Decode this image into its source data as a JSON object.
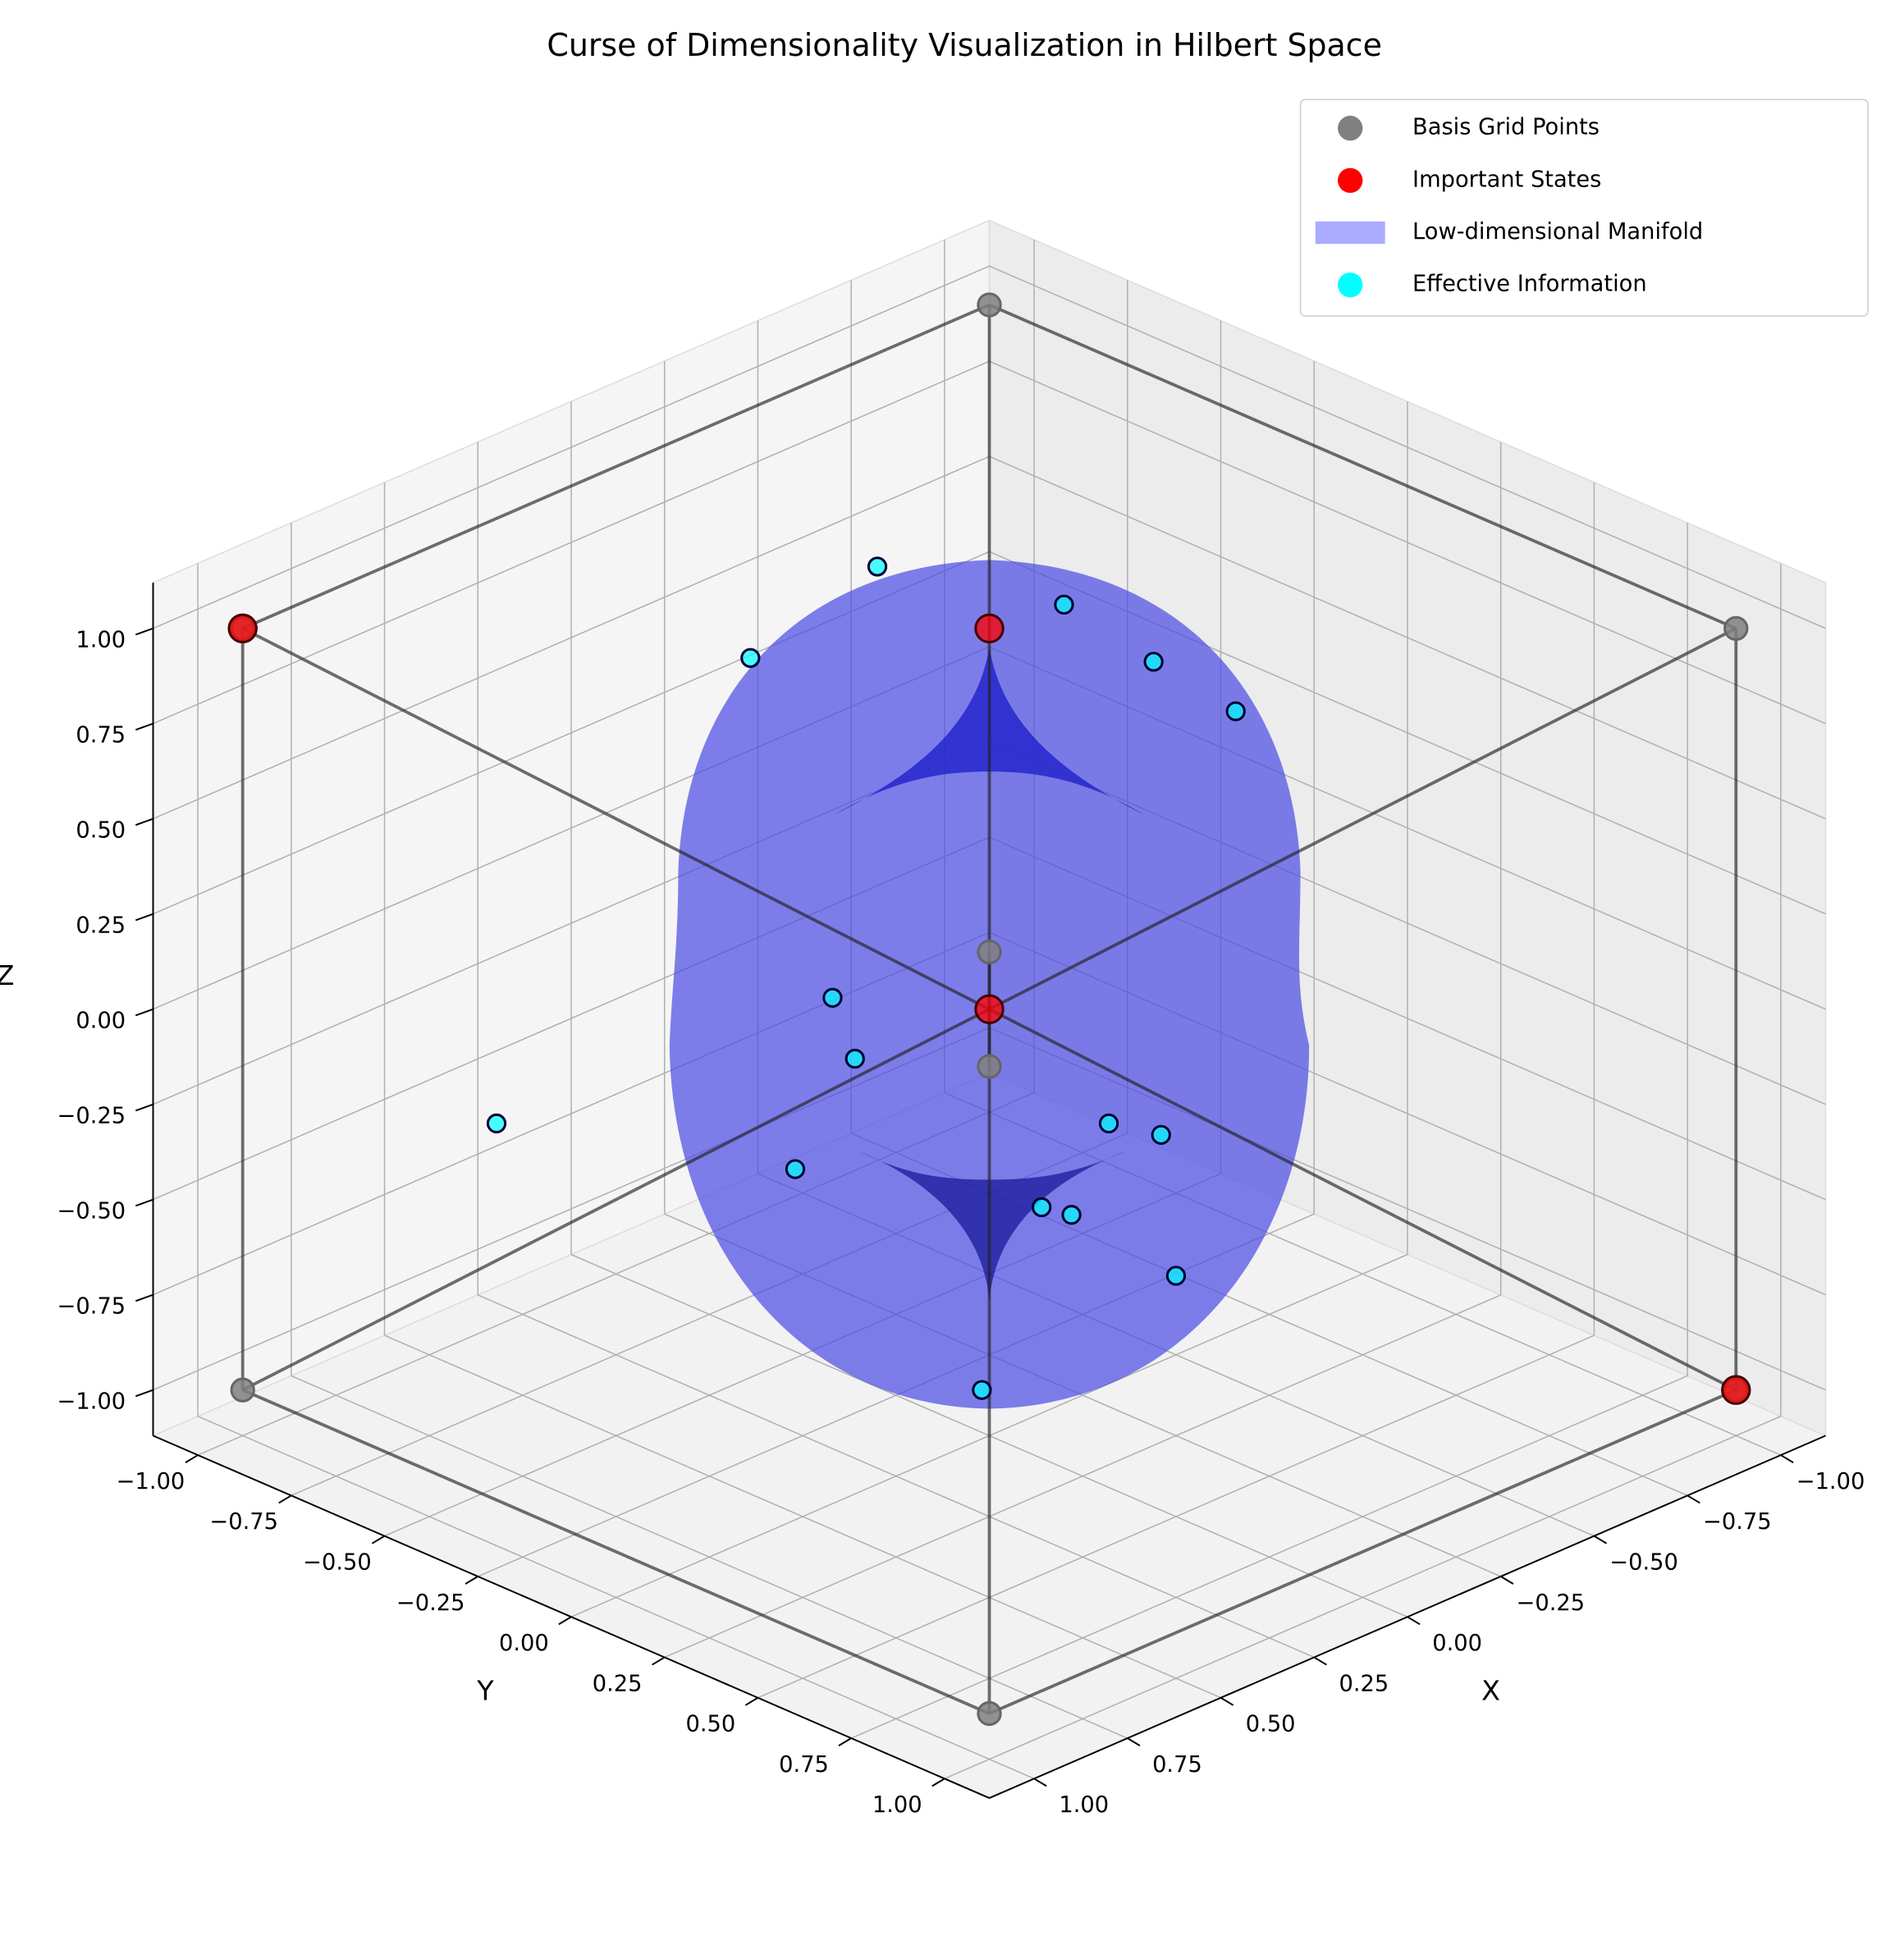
{
  "chart_data": {
    "type": "scatter3d",
    "title": "Curse of Dimensionality Visualization in Hilbert Space",
    "xlabel": "X",
    "ylabel": "Y",
    "zlabel": "Z",
    "xlim": [
      -1.12,
      1.12
    ],
    "ylim": [
      -1.12,
      1.12
    ],
    "zlim": [
      -1.12,
      1.12
    ],
    "xticks": [
      {
        "value": -1,
        "label": "−1.00"
      },
      {
        "value": -0.75,
        "label": "−0.75"
      },
      {
        "value": -0.5,
        "label": "−0.50"
      },
      {
        "value": -0.25,
        "label": "−0.25"
      },
      {
        "value": 0,
        "label": "0.00"
      },
      {
        "value": 0.25,
        "label": "0.25"
      },
      {
        "value": 0.5,
        "label": "0.50"
      },
      {
        "value": 0.75,
        "label": "0.75"
      },
      {
        "value": 1,
        "label": "1.00"
      }
    ],
    "yticks": [
      {
        "value": -1,
        "label": "−1.00"
      },
      {
        "value": -0.75,
        "label": "−0.75"
      },
      {
        "value": -0.5,
        "label": "−0.50"
      },
      {
        "value": -0.25,
        "label": "−0.25"
      },
      {
        "value": 0,
        "label": "0.00"
      },
      {
        "value": 0.25,
        "label": "0.25"
      },
      {
        "value": 0.5,
        "label": "0.50"
      },
      {
        "value": 0.75,
        "label": "0.75"
      },
      {
        "value": 1,
        "label": "1.00"
      }
    ],
    "zticks": [
      {
        "value": -1,
        "label": "−1.00"
      },
      {
        "value": -0.75,
        "label": "−0.75"
      },
      {
        "value": -0.5,
        "label": "−0.50"
      },
      {
        "value": -0.25,
        "label": "−0.25"
      },
      {
        "value": 0,
        "label": "0.00"
      },
      {
        "value": 0.25,
        "label": "0.25"
      },
      {
        "value": 0.5,
        "label": "0.50"
      },
      {
        "value": 0.75,
        "label": "0.75"
      },
      {
        "value": 1,
        "label": "1.00"
      }
    ],
    "grid": true,
    "legend": "upper right",
    "series": [
      {
        "name": "Basis Grid Points",
        "color": "#808080",
        "x": [
          -1,
          1,
          -1,
          1,
          -1,
          1,
          -1,
          1
        ],
        "y": [
          -1,
          -1,
          1,
          1,
          -1,
          -1,
          1,
          1
        ],
        "z": [
          -1,
          -1,
          -1,
          -1,
          1,
          1,
          1,
          1
        ]
      },
      {
        "name": "Important States",
        "color": "#ff0000",
        "x": [
          1,
          0,
          0,
          -1
        ],
        "y": [
          -1,
          0,
          0,
          1
        ],
        "z": [
          1,
          1,
          0,
          -1
        ]
      },
      {
        "name": "Low-dimensional Manifold",
        "color": "#aaaaff",
        "kind": "surface"
      },
      {
        "name": "Effective Information",
        "color": "#00ffff",
        "x": [
          -0.1,
          0.07,
          -0.35,
          -0.47,
          -0.58,
          0.21,
          0.18,
          0.66,
          0.26,
          -0.16,
          -0.23,
          -0.07,
          -0.11,
          -0.25,
          0.01
        ],
        "y": [
          -0.4,
          -0.57,
          -0.15,
          -0.03,
          0.08,
          -0.21,
          -0.18,
          -0.66,
          -0.26,
          0.16,
          0.23,
          0.07,
          0.11,
          0.25,
          -0.01
        ],
        "z": [
          0.95,
          0.71,
          0.85,
          0.7,
          0.57,
          0.03,
          -0.13,
          -0.3,
          -0.42,
          -0.3,
          -0.33,
          -0.52,
          -0.54,
          -0.7,
          -1.0
        ]
      }
    ]
  }
}
